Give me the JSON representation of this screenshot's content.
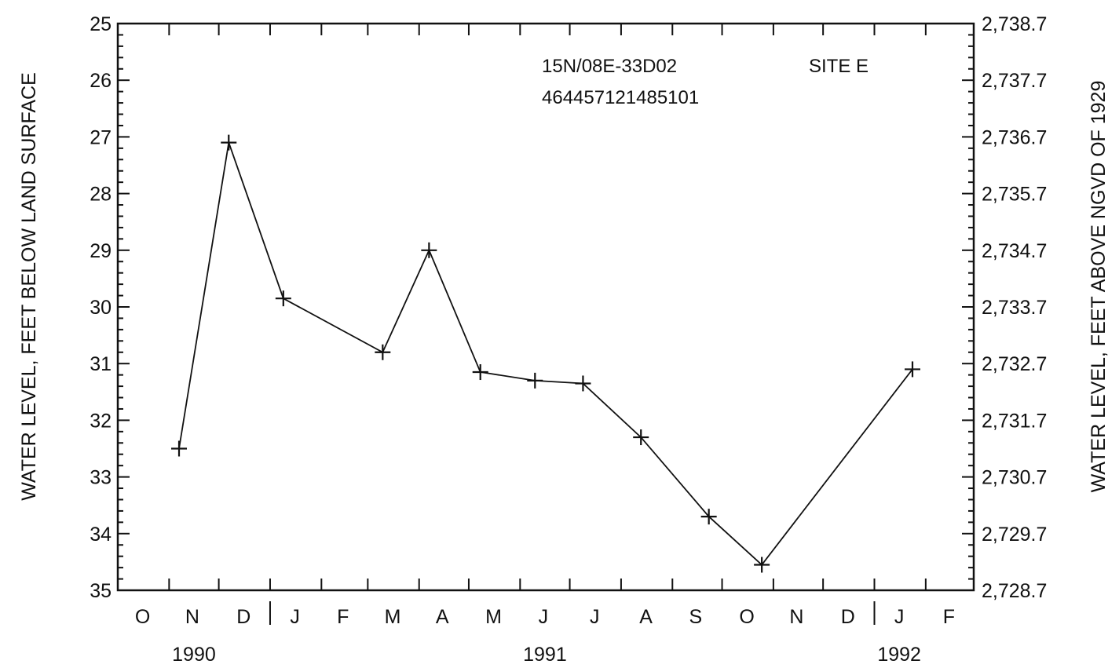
{
  "chart_data": {
    "type": "line",
    "annotations": {
      "well_id": "15N/08E-33D02",
      "site_number": "464457121485101",
      "site_label": "SITE E"
    },
    "y_left": {
      "label": "WATER LEVEL, FEET BELOW LAND SURFACE",
      "inverted": true,
      "range": [
        25,
        35
      ],
      "ticks": [
        "25",
        "26",
        "27",
        "28",
        "29",
        "30",
        "31",
        "32",
        "33",
        "34",
        "35"
      ]
    },
    "y_right": {
      "label": "WATER LEVEL, FEET ABOVE NGVD OF 1929",
      "ticks": [
        "2,738.7",
        "2,737.7",
        "2,736.7",
        "2,735.7",
        "2,734.7",
        "2,733.7",
        "2,732.7",
        "2,731.7",
        "2,730.7",
        "2,729.7",
        "2,728.7"
      ]
    },
    "x_axis": {
      "range": [
        "1990-10-01",
        "1992-03-01"
      ],
      "month_labels": [
        {
          "label": "O",
          "date": "1990-10-16"
        },
        {
          "label": "N",
          "date": "1990-11-15"
        },
        {
          "label": "D",
          "date": "1990-12-16"
        },
        {
          "label": "J",
          "date": "1991-01-16"
        },
        {
          "label": "F",
          "date": "1991-02-14"
        },
        {
          "label": "M",
          "date": "1991-03-16"
        },
        {
          "label": "A",
          "date": "1991-04-15"
        },
        {
          "label": "M",
          "date": "1991-05-16"
        },
        {
          "label": "J",
          "date": "1991-06-15"
        },
        {
          "label": "J",
          "date": "1991-07-16"
        },
        {
          "label": "A",
          "date": "1991-08-16"
        },
        {
          "label": "S",
          "date": "1991-09-15"
        },
        {
          "label": "O",
          "date": "1991-10-16"
        },
        {
          "label": "N",
          "date": "1991-11-15"
        },
        {
          "label": "D",
          "date": "1991-12-16"
        },
        {
          "label": "J",
          "date": "1992-01-16"
        },
        {
          "label": "F",
          "date": "1992-02-15"
        }
      ],
      "year_labels": [
        {
          "label": "1990",
          "date": "1990-11-16"
        },
        {
          "label": "1991",
          "date": "1991-06-16"
        },
        {
          "label": "1992",
          "date": "1992-01-16"
        }
      ],
      "year_boundaries": [
        "1991-01-01",
        "1992-01-01"
      ]
    },
    "series": [
      {
        "points": [
          {
            "date": "1990-11-07",
            "value": 32.5
          },
          {
            "date": "1990-12-07",
            "value": 27.1
          },
          {
            "date": "1991-01-09",
            "value": 29.85
          },
          {
            "date": "1991-03-10",
            "value": 30.8
          },
          {
            "date": "1991-04-07",
            "value": 29.0
          },
          {
            "date": "1991-05-08",
            "value": 31.15
          },
          {
            "date": "1991-06-10",
            "value": 31.3
          },
          {
            "date": "1991-07-09",
            "value": 31.35
          },
          {
            "date": "1991-08-13",
            "value": 32.3
          },
          {
            "date": "1991-09-23",
            "value": 33.7
          },
          {
            "date": "1991-10-25",
            "value": 34.55
          },
          {
            "date": "1992-01-24",
            "value": 31.1
          }
        ]
      }
    ]
  }
}
